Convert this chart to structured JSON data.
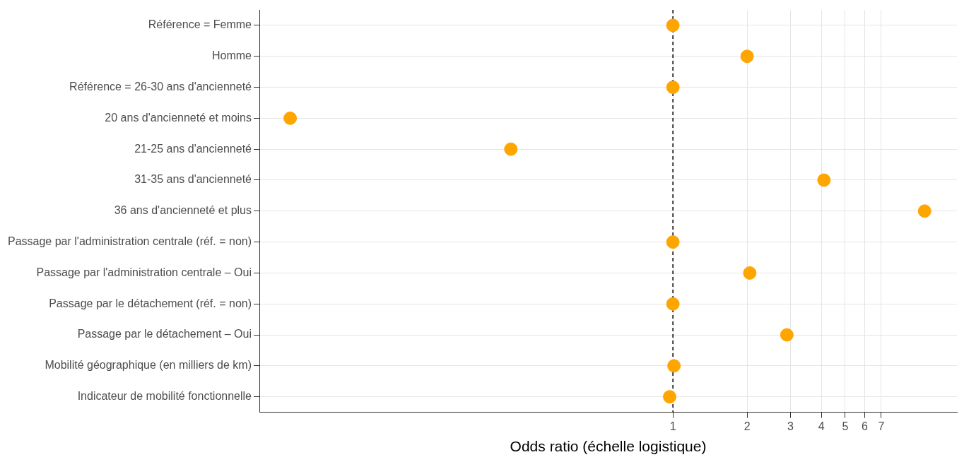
{
  "chart_data": {
    "type": "scatter",
    "xlabel": "Odds ratio (échelle logistique)",
    "categories": [
      "Référence = Femme",
      "Homme",
      "Référence = 26-30 ans d'ancienneté",
      "20 ans d'ancienneté et moins",
      "21-25 ans d'ancienneté",
      "31-35 ans d'ancienneté",
      "36 ans d'ancienneté et plus",
      "Passage par l'administration centrale (réf. = non)",
      "Passage par l'administration centrale – Oui",
      "Passage par le détachement (réf. = non)",
      "Passage par le détachement – Oui",
      "Mobilité géographique (en milliers de km)",
      "Indicateur de mobilité fonctionnelle"
    ],
    "values": [
      1,
      2,
      1,
      0.028,
      0.22,
      4.1,
      10.5,
      1,
      2.05,
      1,
      2.9,
      1.01,
      0.97
    ],
    "color": "#ffa500",
    "orientation": "horizontal",
    "marker": "circle",
    "log": "x",
    "xlim": [
      0.021,
      14.2
    ],
    "xticks": [
      1,
      2,
      3,
      4,
      5,
      6,
      7
    ],
    "grid": true,
    "ref_lines": [
      {
        "axis": "x",
        "value": 1,
        "line_style": "dashed",
        "color": "#000000"
      }
    ]
  }
}
